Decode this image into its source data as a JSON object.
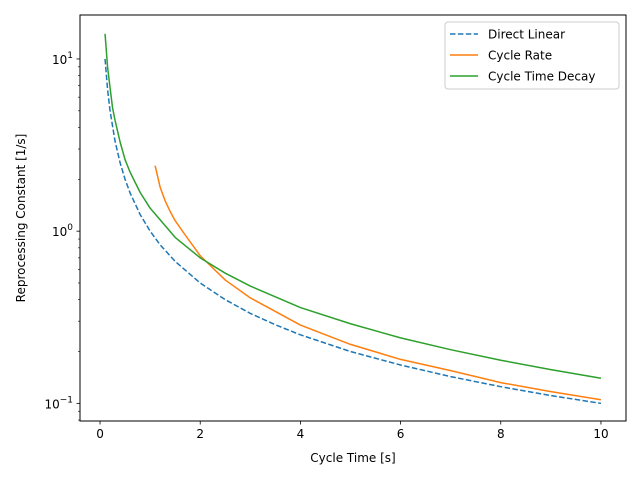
{
  "chart_data": {
    "type": "line",
    "xlabel": "Cycle Time [s]",
    "ylabel": "Reprocessing Constant [1/s]",
    "yscale": "log",
    "xlim": [
      -0.4,
      10.5
    ],
    "ylim": [
      0.079,
      18.0
    ],
    "grid": false,
    "legend_position": "top-right",
    "x_ticks": [
      {
        "value": 0,
        "label": "0"
      },
      {
        "value": 2,
        "label": "2"
      },
      {
        "value": 4,
        "label": "4"
      },
      {
        "value": 6,
        "label": "6"
      },
      {
        "value": 8,
        "label": "8"
      },
      {
        "value": 10,
        "label": "10"
      }
    ],
    "y_ticks": [
      {
        "value": 0.1,
        "base": "10",
        "exp": "−1"
      },
      {
        "value": 1,
        "base": "10",
        "exp": "0"
      },
      {
        "value": 10,
        "base": "10",
        "exp": "1"
      }
    ],
    "series": [
      {
        "name": "Direct Linear",
        "color": "#1f77b4",
        "dashed": true,
        "points": [
          [
            0.1,
            10.0
          ],
          [
            0.15,
            6.67
          ],
          [
            0.2,
            5.0
          ],
          [
            0.3,
            3.33
          ],
          [
            0.4,
            2.5
          ],
          [
            0.5,
            2.0
          ],
          [
            0.6,
            1.667
          ],
          [
            0.8,
            1.25
          ],
          [
            1.0,
            1.0
          ],
          [
            1.2,
            0.833
          ],
          [
            1.5,
            0.667
          ],
          [
            2.0,
            0.5
          ],
          [
            2.5,
            0.4
          ],
          [
            3.0,
            0.333
          ],
          [
            3.5,
            0.286
          ],
          [
            4.0,
            0.25
          ],
          [
            5.0,
            0.2
          ],
          [
            6.0,
            0.167
          ],
          [
            7.0,
            0.143
          ],
          [
            8.0,
            0.125
          ],
          [
            9.0,
            0.111
          ],
          [
            10.0,
            0.1
          ]
        ]
      },
      {
        "name": "Cycle Rate",
        "color": "#ff7f0e",
        "dashed": false,
        "points": [
          [
            1.1,
            2.4
          ],
          [
            1.2,
            1.8
          ],
          [
            1.3,
            1.5
          ],
          [
            1.4,
            1.3
          ],
          [
            1.5,
            1.15
          ],
          [
            1.7,
            0.95
          ],
          [
            2.0,
            0.72
          ],
          [
            2.5,
            0.52
          ],
          [
            3.0,
            0.41
          ],
          [
            4.0,
            0.285
          ],
          [
            5.0,
            0.22
          ],
          [
            6.0,
            0.18
          ],
          [
            7.0,
            0.155
          ],
          [
            8.0,
            0.132
          ],
          [
            9.0,
            0.117
          ],
          [
            10.0,
            0.105
          ]
        ]
      },
      {
        "name": "Cycle Time Decay",
        "color": "#2ca02c",
        "dashed": false,
        "points": [
          [
            0.1,
            14.0
          ],
          [
            0.15,
            9.0
          ],
          [
            0.2,
            6.8
          ],
          [
            0.25,
            5.2
          ],
          [
            0.3,
            4.4
          ],
          [
            0.4,
            3.3
          ],
          [
            0.5,
            2.6
          ],
          [
            0.6,
            2.2
          ],
          [
            0.8,
            1.68
          ],
          [
            1.0,
            1.36
          ],
          [
            1.5,
            0.92
          ],
          [
            2.0,
            0.7
          ],
          [
            2.5,
            0.57
          ],
          [
            3.0,
            0.48
          ],
          [
            4.0,
            0.36
          ],
          [
            5.0,
            0.29
          ],
          [
            6.0,
            0.24
          ],
          [
            7.0,
            0.205
          ],
          [
            8.0,
            0.178
          ],
          [
            9.0,
            0.157
          ],
          [
            10.0,
            0.14
          ]
        ]
      }
    ]
  }
}
